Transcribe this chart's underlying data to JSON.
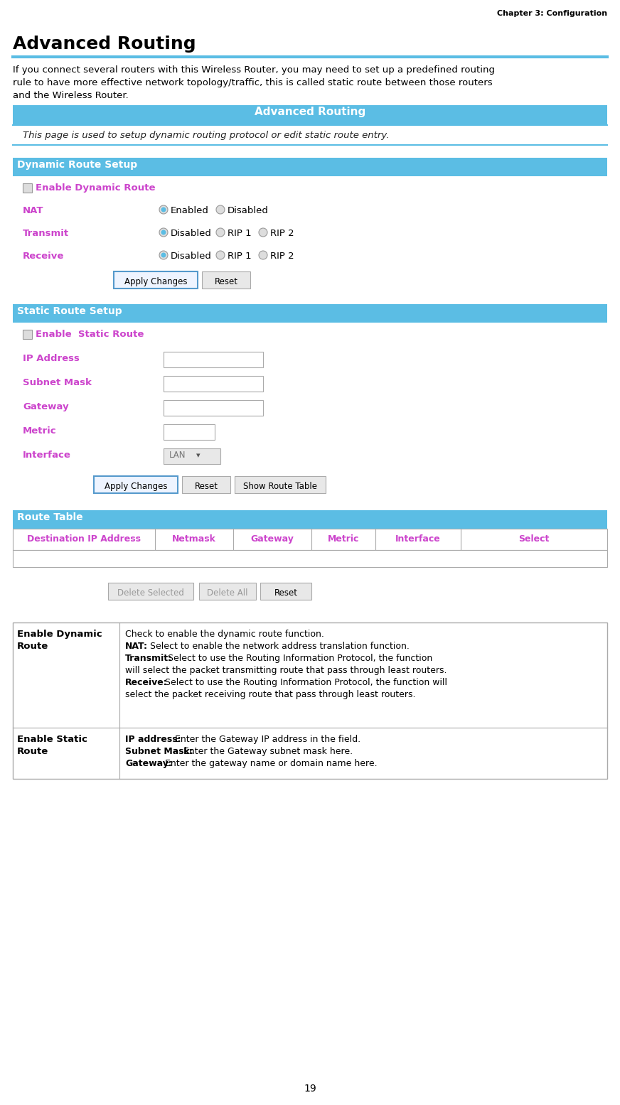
{
  "header_text": "Chapter 3: Configuration",
  "title": "Advanced Routing",
  "intro_line1": "If you connect several routers with this Wireless Router, you may need to set up a predefined routing",
  "intro_line2": "rule to have more effective network topology/traffic, this is called static route between those routers",
  "intro_line3": "and the Wireless Router.",
  "section1_header": "Advanced Routing",
  "section1_info": "This page is used to setup dynamic routing protocol or edit static route entry.",
  "dynamic_route_header": "Dynamic Route Setup",
  "enable_dynamic_label": "Enable Dynamic Route",
  "nat_label": "NAT",
  "transmit_label": "Transmit",
  "receive_label": "Receive",
  "nat_options": [
    "Enabled",
    "Disabled"
  ],
  "tr_rc_options": [
    "Disabled",
    "RIP 1",
    "RIP 2"
  ],
  "static_route_header": "Static Route Setup",
  "enable_static_label": "Enable  Static Route",
  "ip_address_label": "IP Address",
  "subnet_mask_label": "Subnet Mask",
  "gateway_label": "Gateway",
  "metric_label": "Metric",
  "interface_label": "Interface",
  "route_table_header": "Route Table",
  "route_table_columns": [
    "Destination IP Address",
    "Netmask",
    "Gateway",
    "Metric",
    "Interface",
    "Select"
  ],
  "col_lefts": [
    18,
    218,
    328,
    438,
    528,
    648
  ],
  "col_rights": [
    218,
    328,
    438,
    528,
    648,
    854
  ],
  "row1_label_line1": "Enable Dynamic",
  "row1_label_line2": "Route",
  "row1_line1": "Check to enable the dynamic route function.",
  "row1_line2_b": "NAT:",
  "row1_line2_r": " Select to enable the network address translation function.",
  "row1_line3_b": "Transmit:",
  "row1_line3_r": " Select to use the Routing Information Protocol, the function",
  "row1_line4": "will select the packet transmitting route that pass through least routers.",
  "row1_line5_b": "Receive:",
  "row1_line5_r": " Select to use the Routing Information Protocol, the function will",
  "row1_line6": "select the packet receiving route that pass through least routers.",
  "row2_label_line1": "Enable Static",
  "row2_label_line2": "Route",
  "row2_line1_b": "IP address:",
  "row2_line1_r": " Enter the Gateway IP address in the field.",
  "row2_line2_b": "Subnet Mask:",
  "row2_line2_r": " Enter the Gateway subnet mask here.",
  "row2_line3_b": "Gateway:",
  "row2_line3_r": " Enter the gateway name or domain name here.",
  "blue_bg": "#5BBDE4",
  "white": "#FFFFFF",
  "purple": "#CC44CC",
  "dark": "#333333",
  "gray_btn": "#E0E0E0",
  "page_number": "19"
}
